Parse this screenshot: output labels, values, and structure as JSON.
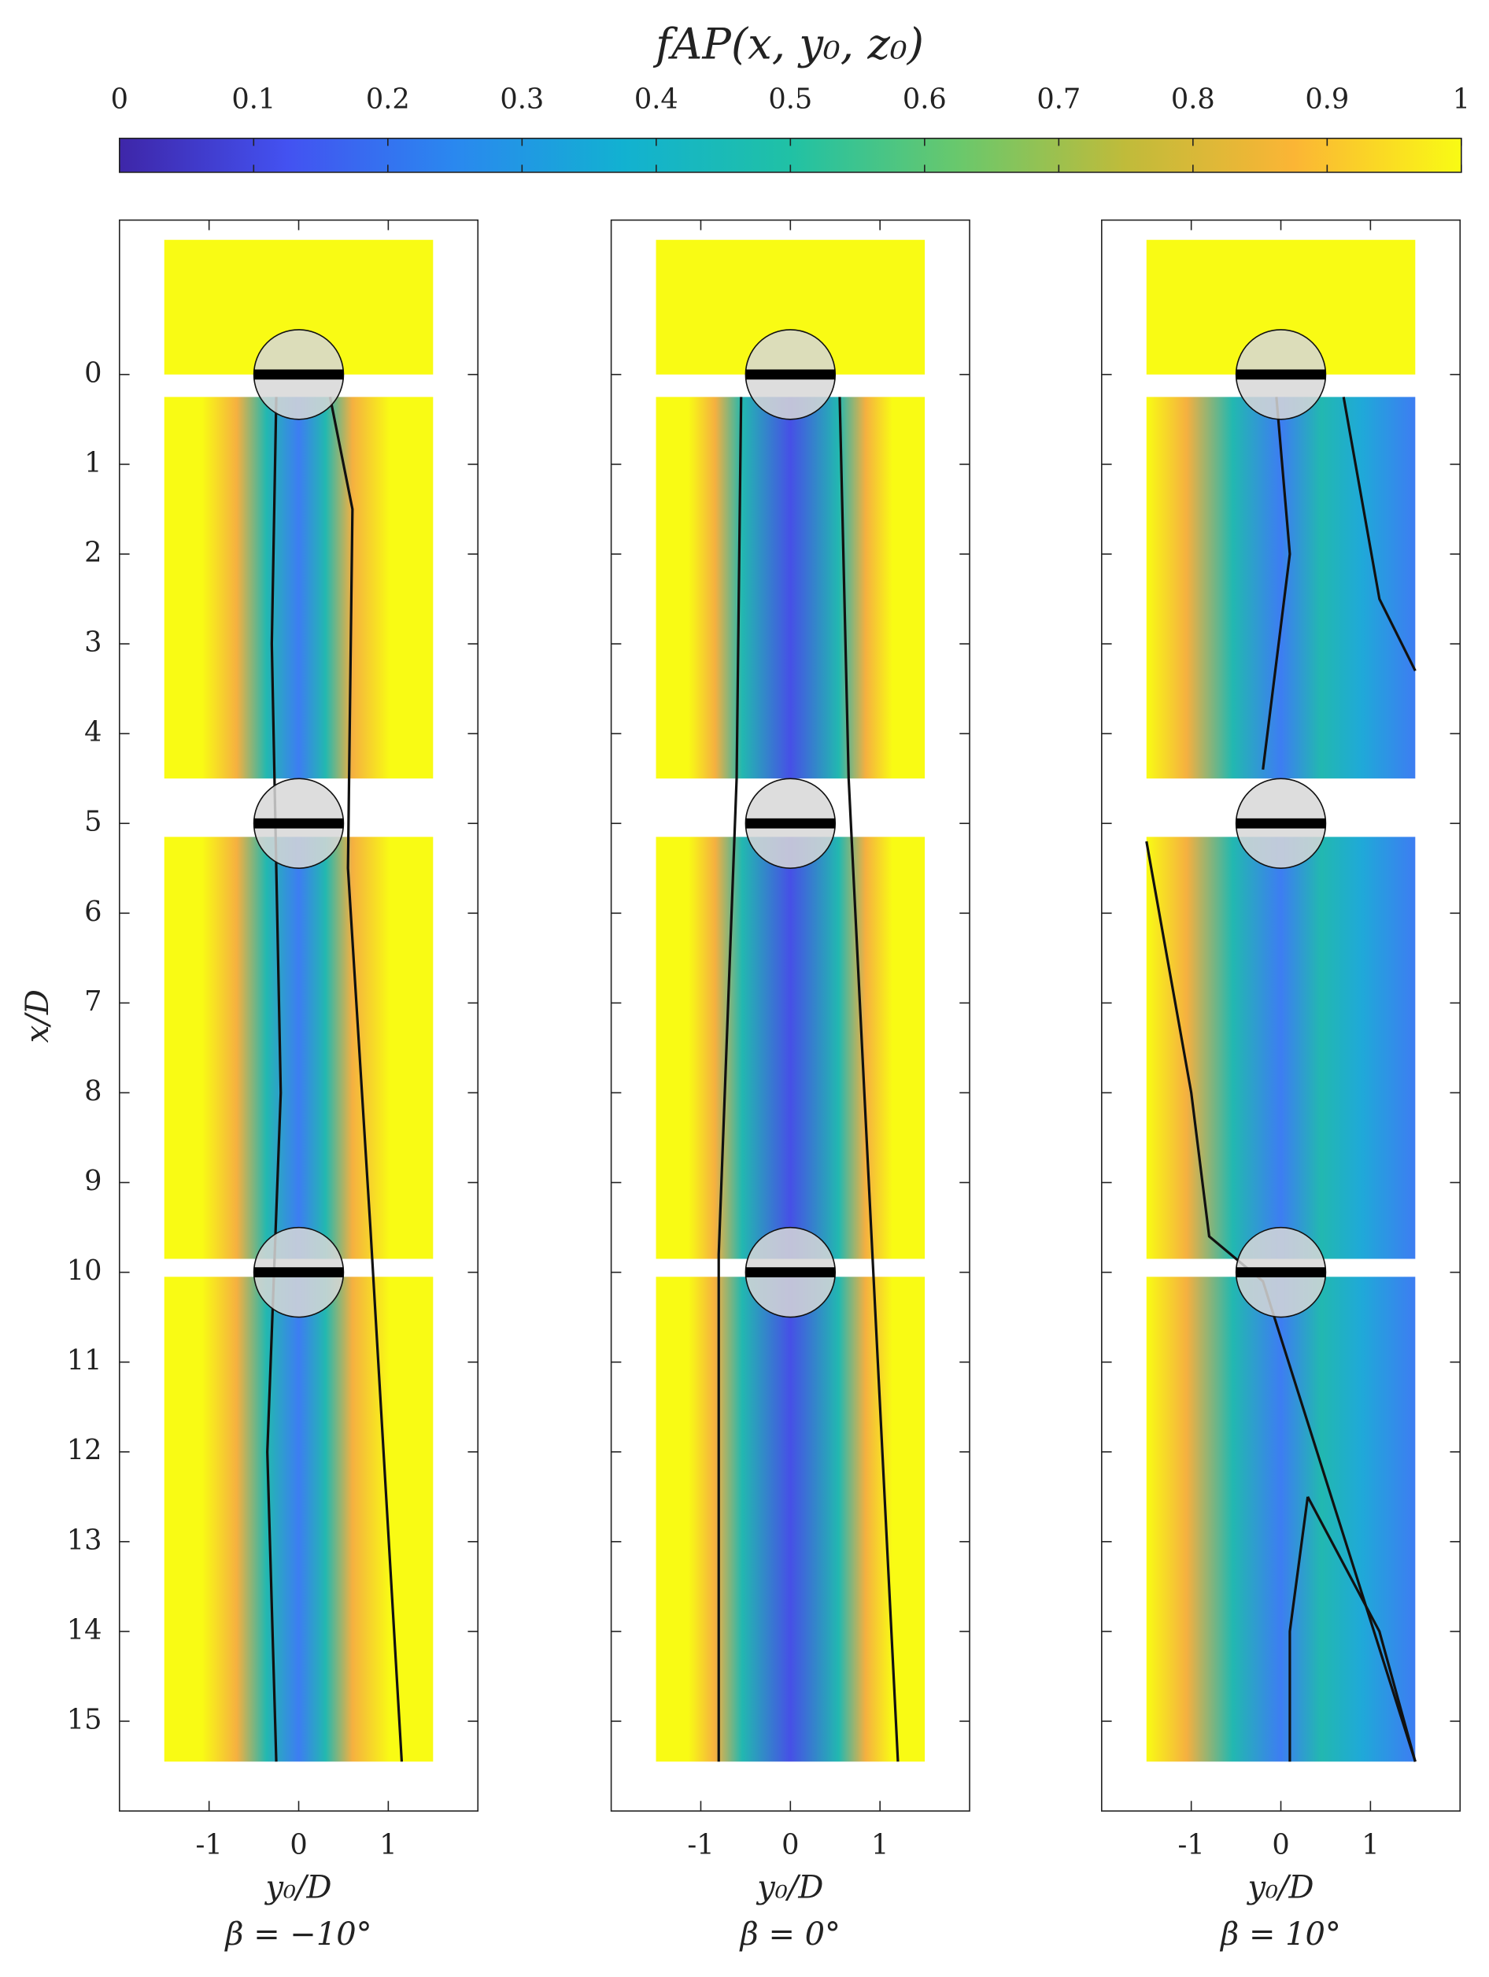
{
  "colorbar": {
    "label": "fAP(x, y₀, z₀)",
    "lim": [
      0,
      1
    ],
    "ticks": [
      0,
      0.1,
      0.2,
      0.3,
      0.4,
      0.5,
      0.6,
      0.7,
      0.8,
      0.9,
      1
    ],
    "colors": [
      "#3e26a8",
      "#4352f1",
      "#2a88ef",
      "#12b1d1",
      "#20c1a5",
      "#69c86c",
      "#c0bb3a",
      "#fbb535",
      "#f9fb14"
    ]
  },
  "chart_data": [
    {
      "type": "heatmap",
      "xlabel": "y₀/D",
      "ylabel": "x/D",
      "subtitle": "β = −10°",
      "xlim": [
        -2,
        2
      ],
      "ylim": [
        -1.72,
        16
      ],
      "y_reversed": true,
      "xticks": [
        -1,
        0,
        1
      ],
      "yticks": [
        0,
        1,
        2,
        3,
        4,
        5,
        6,
        7,
        8,
        9,
        10,
        11,
        12,
        13,
        14,
        15
      ]
    },
    {
      "type": "heatmap",
      "xlabel": "y₀/D",
      "subtitle": "β = 0°",
      "xlim": [
        -2,
        2
      ],
      "ylim": [
        -1.72,
        16
      ],
      "y_reversed": true,
      "xticks": [
        -1,
        0,
        1
      ]
    },
    {
      "type": "heatmap",
      "xlabel": "y₀/D",
      "subtitle": "β = 10°",
      "xlim": [
        -2,
        2
      ],
      "ylim": [
        -1.72,
        16
      ],
      "y_reversed": true,
      "xticks": [
        -1,
        0,
        1
      ]
    }
  ]
}
